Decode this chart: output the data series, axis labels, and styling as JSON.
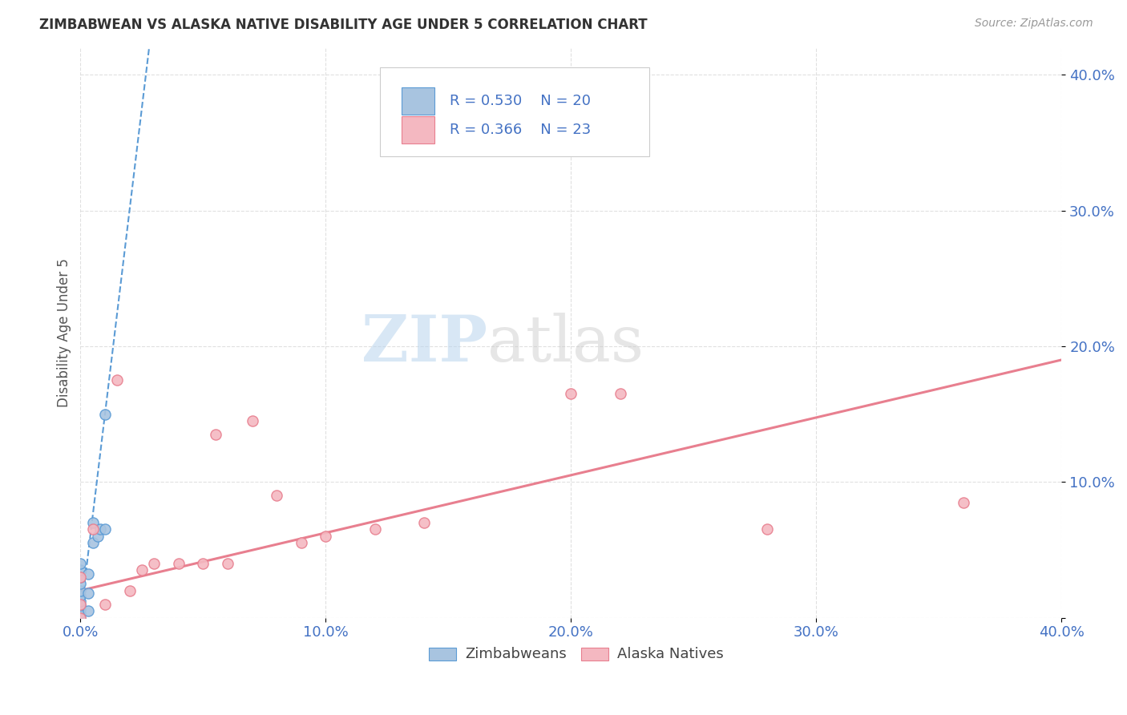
{
  "title": "ZIMBABWEAN VS ALASKA NATIVE DISABILITY AGE UNDER 5 CORRELATION CHART",
  "source": "Source: ZipAtlas.com",
  "xlabel": "",
  "ylabel": "Disability Age Under 5",
  "xlim": [
    0.0,
    0.4
  ],
  "ylim": [
    0.0,
    0.42
  ],
  "xtick_labels": [
    "0.0%",
    "10.0%",
    "20.0%",
    "30.0%",
    "40.0%"
  ],
  "xtick_values": [
    0.0,
    0.1,
    0.2,
    0.3,
    0.4
  ],
  "ytick_labels": [
    "",
    "10.0%",
    "20.0%",
    "30.0%",
    "40.0%"
  ],
  "ytick_values": [
    0.0,
    0.1,
    0.2,
    0.3,
    0.4
  ],
  "background_color": "#ffffff",
  "grid_color": "#e0e0e0",
  "blue_series_label": "Zimbabweans",
  "blue_R": 0.53,
  "blue_N": 20,
  "blue_color": "#a8c4e0",
  "blue_line_color": "#5b9bd5",
  "blue_marker_color": "#a8c4e0",
  "blue_marker_edge": "#5b9bd5",
  "pink_series_label": "Alaska Natives",
  "pink_R": 0.366,
  "pink_N": 23,
  "pink_color": "#f4b8c1",
  "pink_line_color": "#e87f8f",
  "pink_marker_color": "#f4b8c1",
  "pink_marker_edge": "#e87f8f",
  "legend_color": "#4472c4",
  "blue_scatter_x": [
    0.0,
    0.0,
    0.0,
    0.0,
    0.0,
    0.0,
    0.0,
    0.0,
    0.0,
    0.0,
    0.0,
    0.003,
    0.003,
    0.003,
    0.005,
    0.005,
    0.007,
    0.008,
    0.01,
    0.01
  ],
  "blue_scatter_y": [
    0.0,
    0.003,
    0.006,
    0.009,
    0.012,
    0.016,
    0.02,
    0.025,
    0.03,
    0.035,
    0.04,
    0.005,
    0.018,
    0.032,
    0.055,
    0.07,
    0.06,
    0.065,
    0.065,
    0.15
  ],
  "pink_scatter_x": [
    0.0,
    0.0,
    0.0,
    0.005,
    0.01,
    0.015,
    0.02,
    0.025,
    0.03,
    0.04,
    0.05,
    0.055,
    0.06,
    0.07,
    0.08,
    0.09,
    0.1,
    0.12,
    0.14,
    0.2,
    0.22,
    0.28,
    0.36
  ],
  "pink_scatter_y": [
    0.0,
    0.01,
    0.03,
    0.065,
    0.01,
    0.175,
    0.02,
    0.035,
    0.04,
    0.04,
    0.04,
    0.135,
    0.04,
    0.145,
    0.09,
    0.055,
    0.06,
    0.065,
    0.07,
    0.165,
    0.165,
    0.065,
    0.085
  ],
  "blue_trendline_x": [
    0.0,
    0.028
  ],
  "blue_trendline_y": [
    0.0,
    0.42
  ],
  "pink_trendline_x": [
    0.0,
    0.4
  ],
  "pink_trendline_y": [
    0.02,
    0.19
  ]
}
